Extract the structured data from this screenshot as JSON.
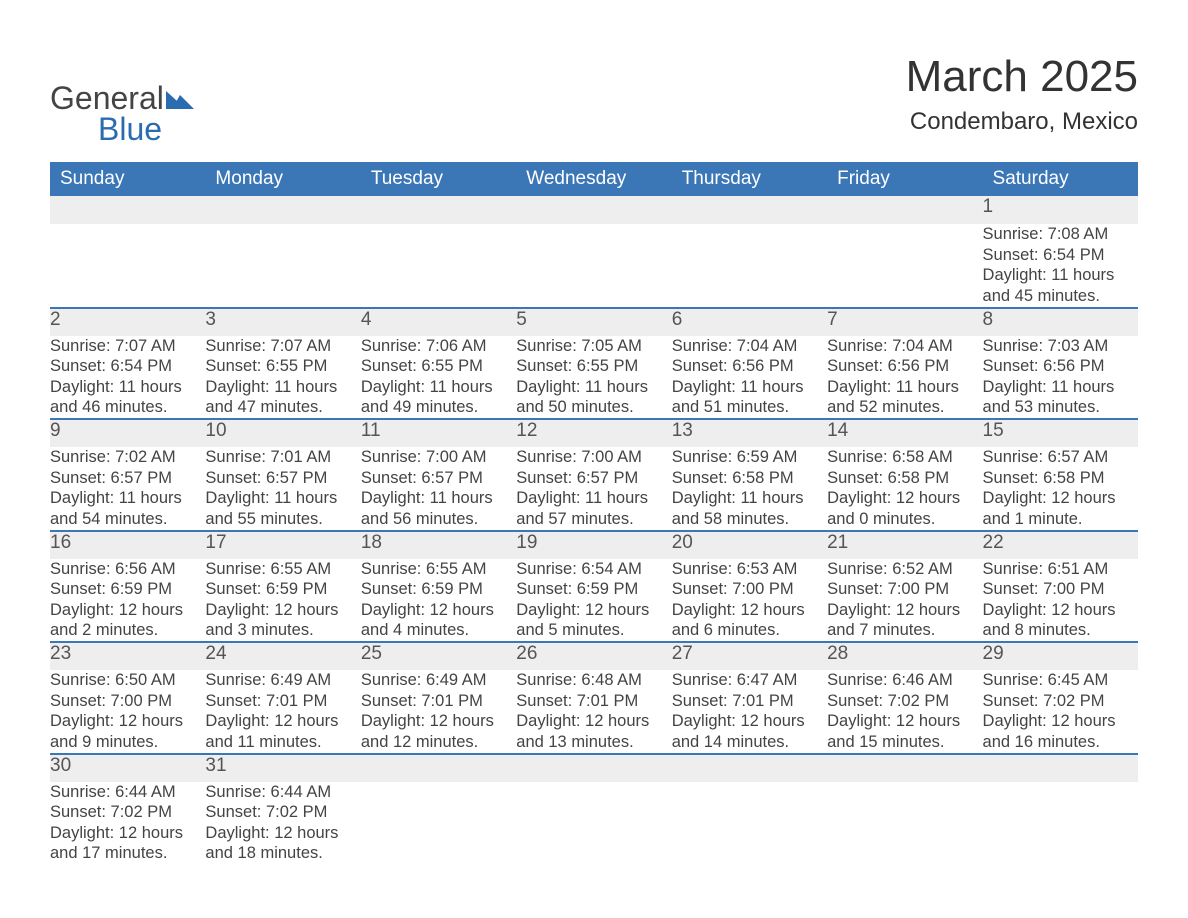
{
  "logo": {
    "text_general": "General",
    "text_blue": "Blue"
  },
  "header": {
    "month_title": "March 2025",
    "location": "Condembaro, Mexico"
  },
  "colors": {
    "header_bg": "#3b76b6",
    "header_text": "#ffffff",
    "daynum_bg": "#eeeeee",
    "row_border": "#3b76b6",
    "body_text": "#444444",
    "logo_blue": "#2b6cb0",
    "background": "#ffffff"
  },
  "fonts": {
    "family": "Arial",
    "month_title_pt": 33,
    "location_pt": 18,
    "weekday_header_pt": 14,
    "daynum_pt": 14,
    "cell_text_pt": 12,
    "logo_pt": 24
  },
  "calendar": {
    "weekdays": [
      "Sunday",
      "Monday",
      "Tuesday",
      "Wednesday",
      "Thursday",
      "Friday",
      "Saturday"
    ],
    "rows": [
      [
        null,
        null,
        null,
        null,
        null,
        null,
        {
          "n": "1",
          "sr": "Sunrise: 7:08 AM",
          "ss": "Sunset: 6:54 PM",
          "d1": "Daylight: 11 hours",
          "d2": "and 45 minutes."
        }
      ],
      [
        {
          "n": "2",
          "sr": "Sunrise: 7:07 AM",
          "ss": "Sunset: 6:54 PM",
          "d1": "Daylight: 11 hours",
          "d2": "and 46 minutes."
        },
        {
          "n": "3",
          "sr": "Sunrise: 7:07 AM",
          "ss": "Sunset: 6:55 PM",
          "d1": "Daylight: 11 hours",
          "d2": "and 47 minutes."
        },
        {
          "n": "4",
          "sr": "Sunrise: 7:06 AM",
          "ss": "Sunset: 6:55 PM",
          "d1": "Daylight: 11 hours",
          "d2": "and 49 minutes."
        },
        {
          "n": "5",
          "sr": "Sunrise: 7:05 AM",
          "ss": "Sunset: 6:55 PM",
          "d1": "Daylight: 11 hours",
          "d2": "and 50 minutes."
        },
        {
          "n": "6",
          "sr": "Sunrise: 7:04 AM",
          "ss": "Sunset: 6:56 PM",
          "d1": "Daylight: 11 hours",
          "d2": "and 51 minutes."
        },
        {
          "n": "7",
          "sr": "Sunrise: 7:04 AM",
          "ss": "Sunset: 6:56 PM",
          "d1": "Daylight: 11 hours",
          "d2": "and 52 minutes."
        },
        {
          "n": "8",
          "sr": "Sunrise: 7:03 AM",
          "ss": "Sunset: 6:56 PM",
          "d1": "Daylight: 11 hours",
          "d2": "and 53 minutes."
        }
      ],
      [
        {
          "n": "9",
          "sr": "Sunrise: 7:02 AM",
          "ss": "Sunset: 6:57 PM",
          "d1": "Daylight: 11 hours",
          "d2": "and 54 minutes."
        },
        {
          "n": "10",
          "sr": "Sunrise: 7:01 AM",
          "ss": "Sunset: 6:57 PM",
          "d1": "Daylight: 11 hours",
          "d2": "and 55 minutes."
        },
        {
          "n": "11",
          "sr": "Sunrise: 7:00 AM",
          "ss": "Sunset: 6:57 PM",
          "d1": "Daylight: 11 hours",
          "d2": "and 56 minutes."
        },
        {
          "n": "12",
          "sr": "Sunrise: 7:00 AM",
          "ss": "Sunset: 6:57 PM",
          "d1": "Daylight: 11 hours",
          "d2": "and 57 minutes."
        },
        {
          "n": "13",
          "sr": "Sunrise: 6:59 AM",
          "ss": "Sunset: 6:58 PM",
          "d1": "Daylight: 11 hours",
          "d2": "and 58 minutes."
        },
        {
          "n": "14",
          "sr": "Sunrise: 6:58 AM",
          "ss": "Sunset: 6:58 PM",
          "d1": "Daylight: 12 hours",
          "d2": "and 0 minutes."
        },
        {
          "n": "15",
          "sr": "Sunrise: 6:57 AM",
          "ss": "Sunset: 6:58 PM",
          "d1": "Daylight: 12 hours",
          "d2": "and 1 minute."
        }
      ],
      [
        {
          "n": "16",
          "sr": "Sunrise: 6:56 AM",
          "ss": "Sunset: 6:59 PM",
          "d1": "Daylight: 12 hours",
          "d2": "and 2 minutes."
        },
        {
          "n": "17",
          "sr": "Sunrise: 6:55 AM",
          "ss": "Sunset: 6:59 PM",
          "d1": "Daylight: 12 hours",
          "d2": "and 3 minutes."
        },
        {
          "n": "18",
          "sr": "Sunrise: 6:55 AM",
          "ss": "Sunset: 6:59 PM",
          "d1": "Daylight: 12 hours",
          "d2": "and 4 minutes."
        },
        {
          "n": "19",
          "sr": "Sunrise: 6:54 AM",
          "ss": "Sunset: 6:59 PM",
          "d1": "Daylight: 12 hours",
          "d2": "and 5 minutes."
        },
        {
          "n": "20",
          "sr": "Sunrise: 6:53 AM",
          "ss": "Sunset: 7:00 PM",
          "d1": "Daylight: 12 hours",
          "d2": "and 6 minutes."
        },
        {
          "n": "21",
          "sr": "Sunrise: 6:52 AM",
          "ss": "Sunset: 7:00 PM",
          "d1": "Daylight: 12 hours",
          "d2": "and 7 minutes."
        },
        {
          "n": "22",
          "sr": "Sunrise: 6:51 AM",
          "ss": "Sunset: 7:00 PM",
          "d1": "Daylight: 12 hours",
          "d2": "and 8 minutes."
        }
      ],
      [
        {
          "n": "23",
          "sr": "Sunrise: 6:50 AM",
          "ss": "Sunset: 7:00 PM",
          "d1": "Daylight: 12 hours",
          "d2": "and 9 minutes."
        },
        {
          "n": "24",
          "sr": "Sunrise: 6:49 AM",
          "ss": "Sunset: 7:01 PM",
          "d1": "Daylight: 12 hours",
          "d2": "and 11 minutes."
        },
        {
          "n": "25",
          "sr": "Sunrise: 6:49 AM",
          "ss": "Sunset: 7:01 PM",
          "d1": "Daylight: 12 hours",
          "d2": "and 12 minutes."
        },
        {
          "n": "26",
          "sr": "Sunrise: 6:48 AM",
          "ss": "Sunset: 7:01 PM",
          "d1": "Daylight: 12 hours",
          "d2": "and 13 minutes."
        },
        {
          "n": "27",
          "sr": "Sunrise: 6:47 AM",
          "ss": "Sunset: 7:01 PM",
          "d1": "Daylight: 12 hours",
          "d2": "and 14 minutes."
        },
        {
          "n": "28",
          "sr": "Sunrise: 6:46 AM",
          "ss": "Sunset: 7:02 PM",
          "d1": "Daylight: 12 hours",
          "d2": "and 15 minutes."
        },
        {
          "n": "29",
          "sr": "Sunrise: 6:45 AM",
          "ss": "Sunset: 7:02 PM",
          "d1": "Daylight: 12 hours",
          "d2": "and 16 minutes."
        }
      ],
      [
        {
          "n": "30",
          "sr": "Sunrise: 6:44 AM",
          "ss": "Sunset: 7:02 PM",
          "d1": "Daylight: 12 hours",
          "d2": "and 17 minutes."
        },
        {
          "n": "31",
          "sr": "Sunrise: 6:44 AM",
          "ss": "Sunset: 7:02 PM",
          "d1": "Daylight: 12 hours",
          "d2": "and 18 minutes."
        },
        null,
        null,
        null,
        null,
        null
      ]
    ]
  }
}
